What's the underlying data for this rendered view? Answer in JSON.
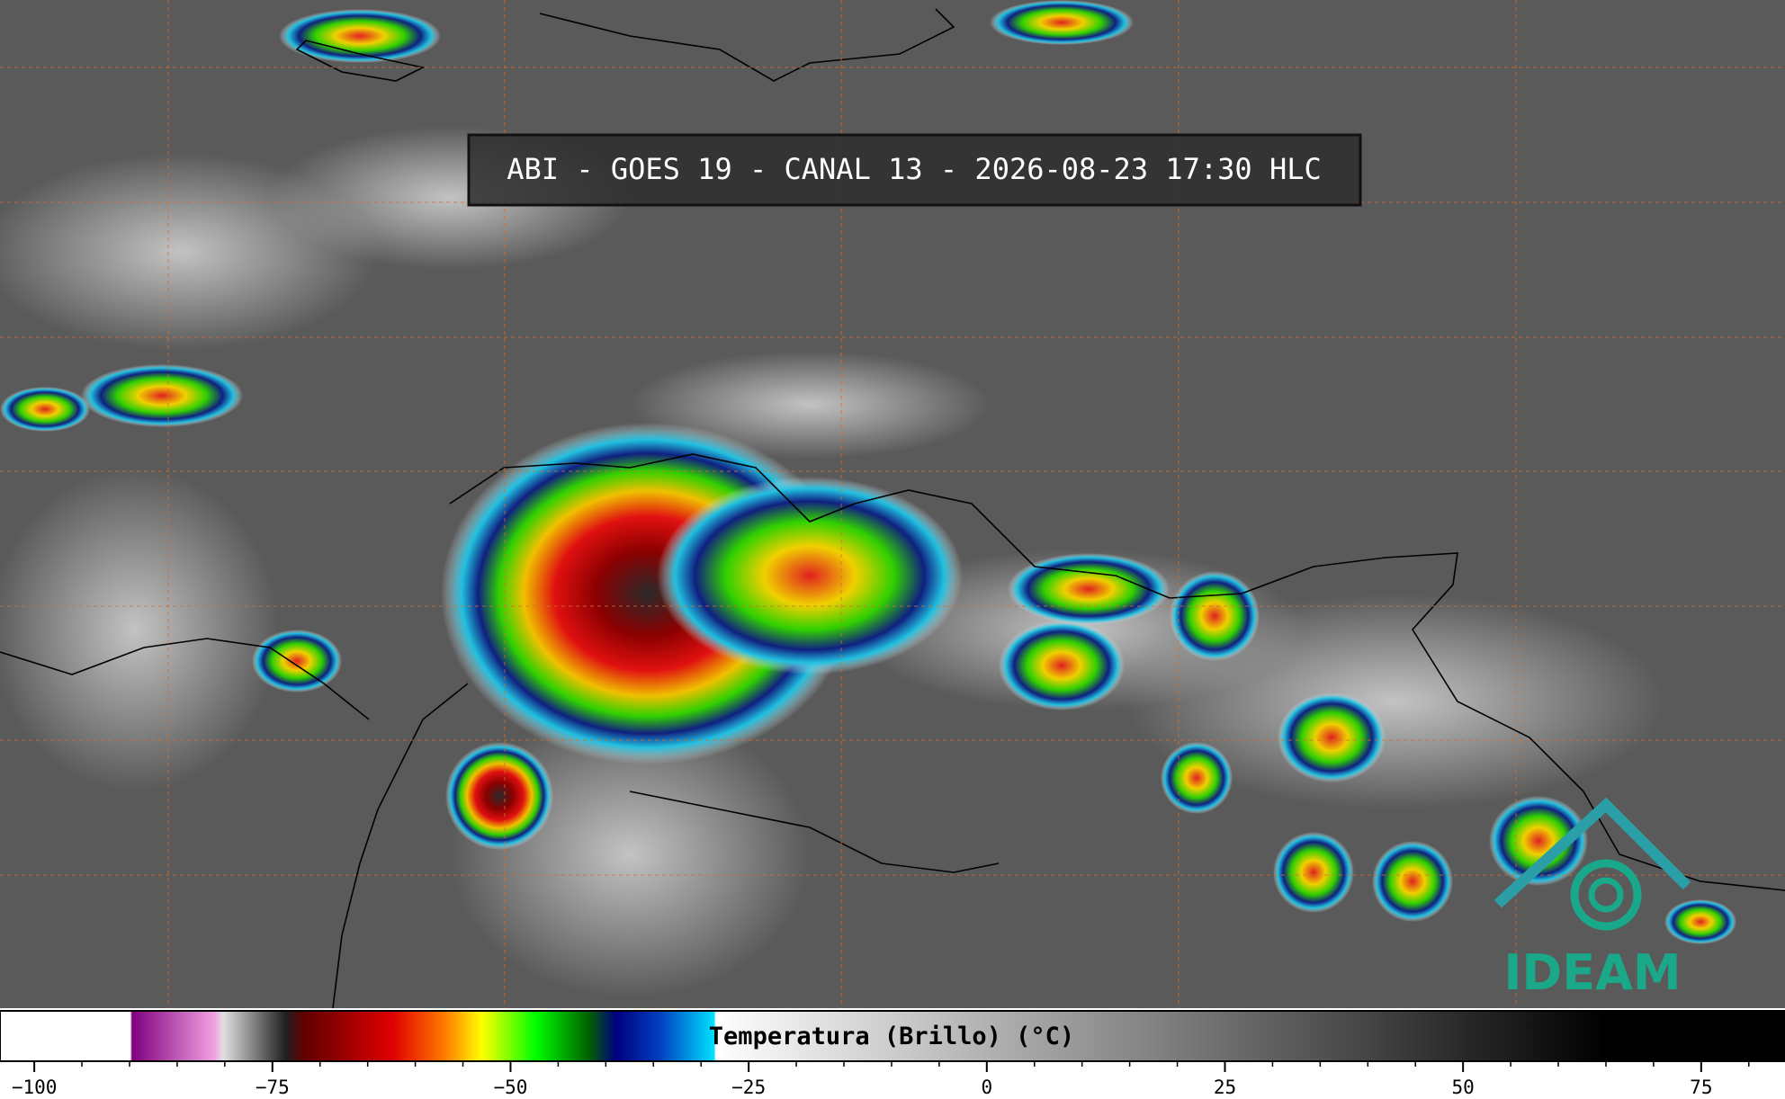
{
  "header": {
    "title": "ABI - GOES 19 - CANAL 13 - 2026-08-23 17:30 HLC"
  },
  "colorbar": {
    "label": "Temperatura (Brillo) (°C)",
    "range": [
      -103.6,
      83.8
    ],
    "ticks": [
      {
        "value": -100,
        "label": "−100"
      },
      {
        "value": -75,
        "label": "−75"
      },
      {
        "value": -50,
        "label": "−50"
      },
      {
        "value": -25,
        "label": "−25"
      },
      0,
      25,
      50,
      75
    ]
  },
  "logo": {
    "text": "IDEAM"
  }
}
